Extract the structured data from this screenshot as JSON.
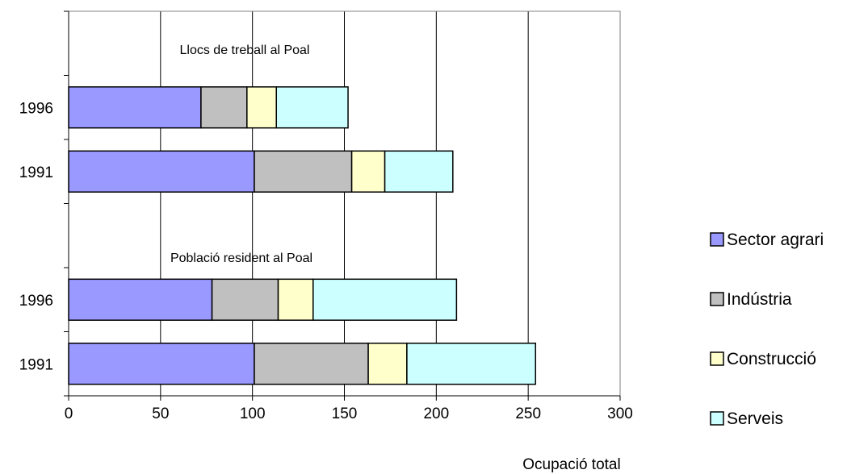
{
  "chart_data": {
    "type": "bar",
    "orientation": "horizontal",
    "stacked": true,
    "xlabel": "Ocupació total",
    "xlim": [
      0,
      300
    ],
    "xticks": [
      0,
      50,
      100,
      150,
      200,
      250,
      300
    ],
    "grid": "vertical gridlines",
    "legend_position": "right",
    "groups": [
      {
        "label": "Llocs de treball al Poal",
        "categories": [
          "1996",
          "1991"
        ]
      },
      {
        "label": "Població resident al Poal",
        "categories": [
          "1996",
          "1991"
        ]
      }
    ],
    "series": [
      {
        "name": "Sector agrari",
        "color": "#9999ff",
        "values": [
          [
            72,
            101
          ],
          [
            78,
            101
          ]
        ]
      },
      {
        "name": "Indústria",
        "color": "#c0c0c0",
        "values": [
          [
            25,
            53
          ],
          [
            36,
            62
          ]
        ]
      },
      {
        "name": "Construcció",
        "color": "#ffffcc",
        "values": [
          [
            16,
            18
          ],
          [
            19,
            21
          ]
        ]
      },
      {
        "name": "Serveis",
        "color": "#ccffff",
        "values": [
          [
            39,
            37
          ],
          [
            78,
            70
          ]
        ]
      }
    ]
  }
}
